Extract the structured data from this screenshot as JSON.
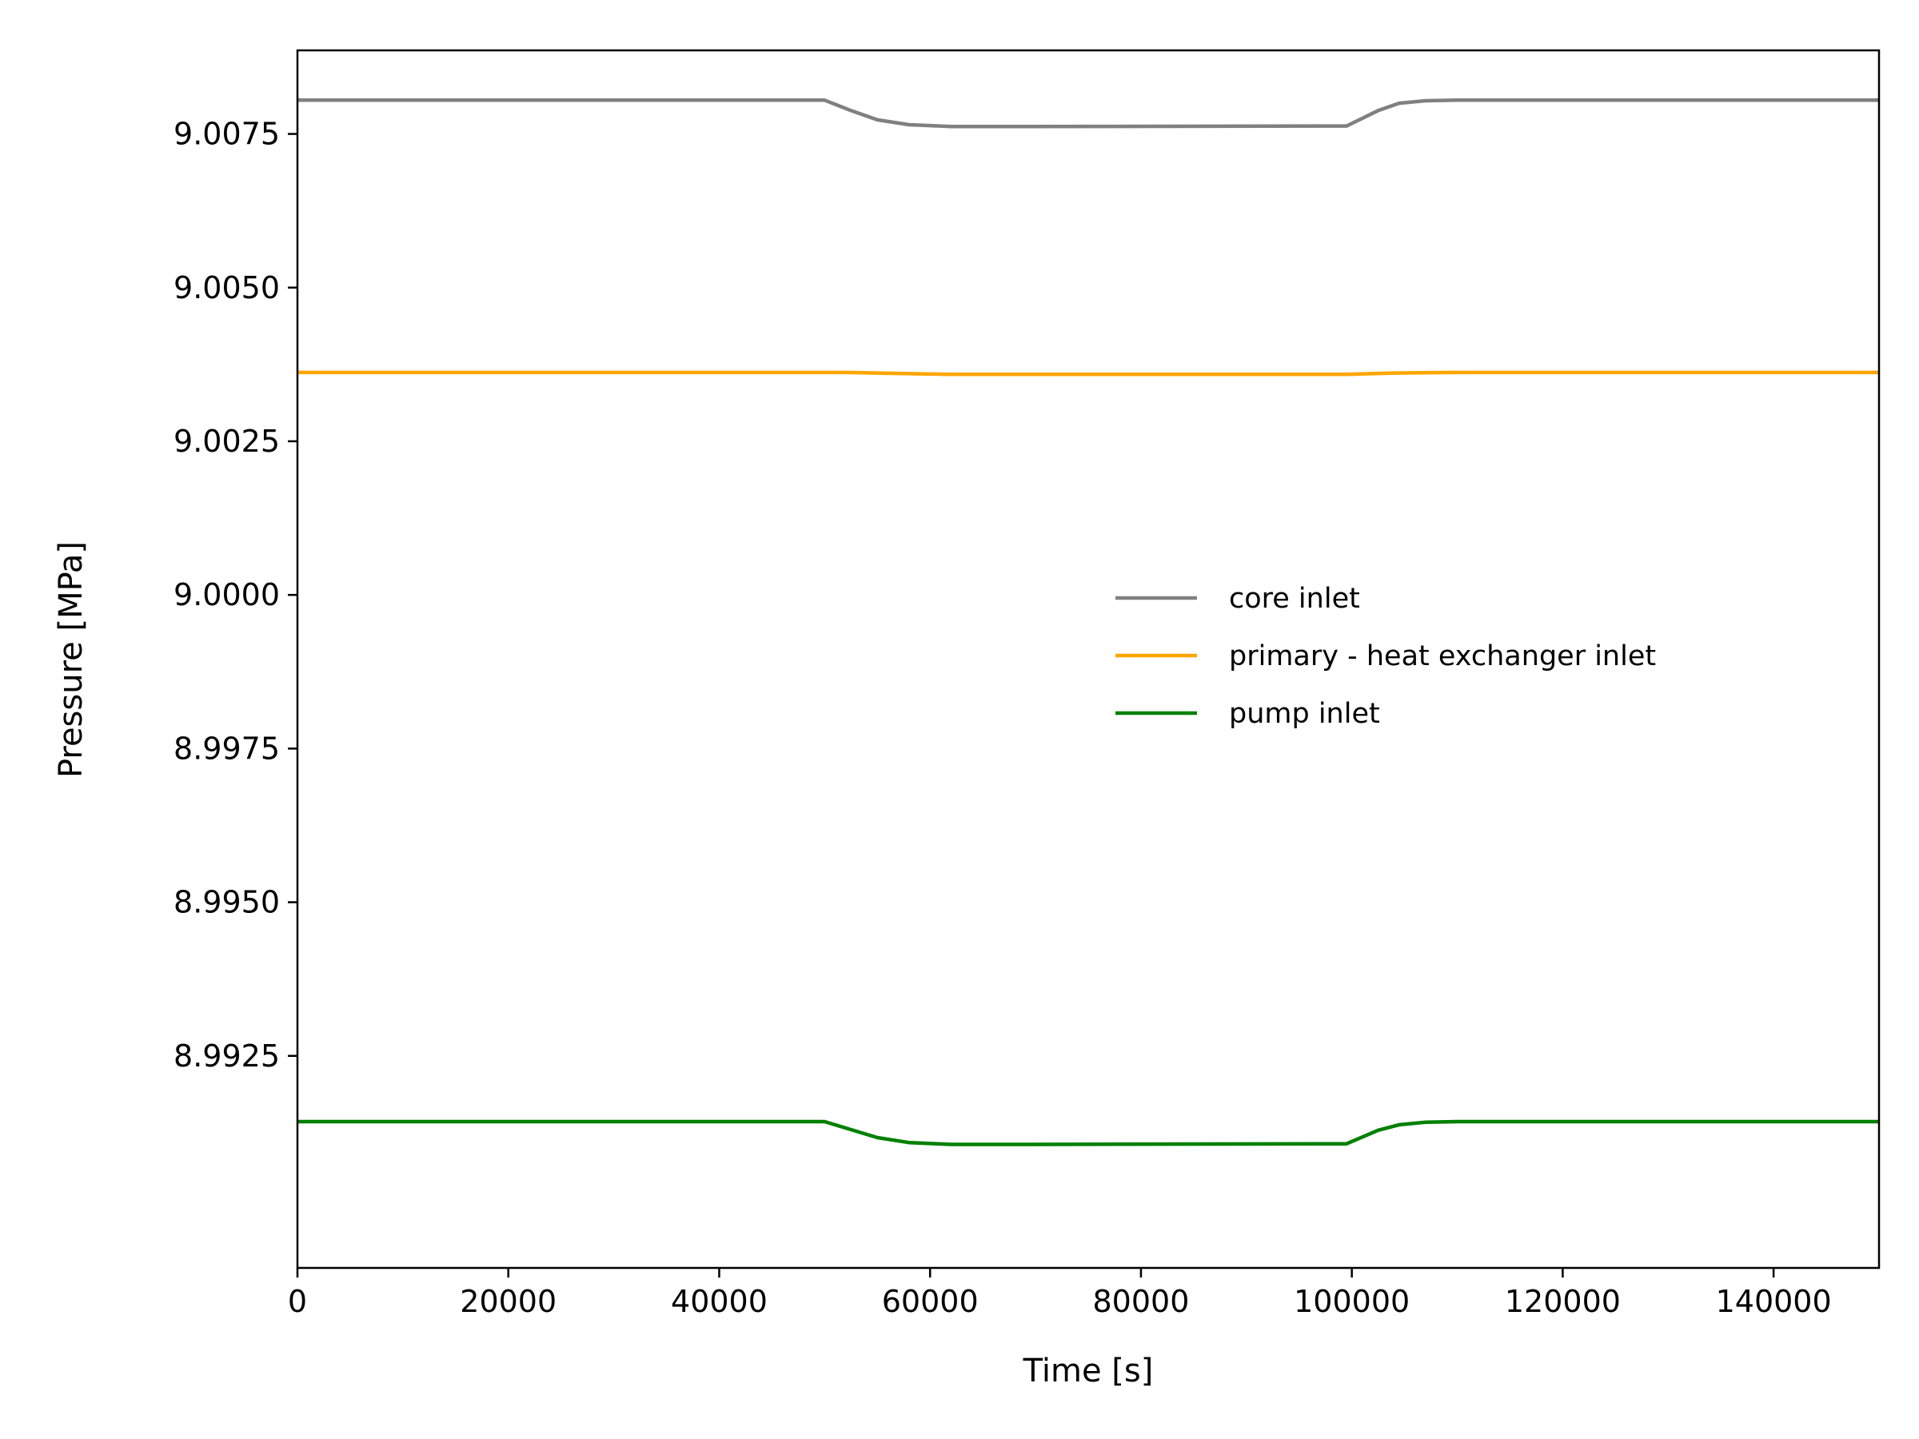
{
  "chart_data": {
    "type": "line",
    "title": "",
    "xlabel": "Time [s]",
    "ylabel": "Pressure [MPa]",
    "xlim": [
      0,
      150000
    ],
    "ylim": [
      8.98905,
      9.00886
    ],
    "x_ticks": [
      0,
      20000,
      40000,
      60000,
      80000,
      100000,
      120000,
      140000
    ],
    "x_tick_labels": [
      "0",
      "20000",
      "40000",
      "60000",
      "80000",
      "100000",
      "120000",
      "140000"
    ],
    "y_ticks": [
      8.9925,
      8.995,
      8.9975,
      9.0,
      9.0025,
      9.005,
      9.0075
    ],
    "y_tick_labels": [
      "8.9925",
      "8.9950",
      "8.9975",
      "9.0000",
      "9.0025",
      "9.0050",
      "9.0075"
    ],
    "grid": false,
    "legend_position": "center-right",
    "series": [
      {
        "name": "core inlet",
        "color": "#808080",
        "x": [
          0,
          50000,
          52500,
          55000,
          58000,
          62000,
          70000,
          99500,
          102500,
          104500,
          107000,
          110000,
          120000,
          150000
        ],
        "y": [
          9.00805,
          9.00805,
          9.00788,
          9.00773,
          9.00765,
          9.00762,
          9.00762,
          9.00763,
          9.00788,
          9.008,
          9.00804,
          9.00805,
          9.00805,
          9.00805
        ]
      },
      {
        "name": "primary - heat exchanger inlet",
        "color": "#FFA500",
        "x": [
          0,
          52000,
          58000,
          62000,
          99500,
          104000,
          110000,
          150000
        ],
        "y": [
          9.00362,
          9.00362,
          9.0036,
          9.00359,
          9.00359,
          9.00361,
          9.00362,
          9.00362
        ]
      },
      {
        "name": "pump inlet",
        "color": "#008000",
        "x": [
          0,
          50000,
          52500,
          55000,
          58000,
          62000,
          70000,
          99500,
          102500,
          104500,
          107000,
          110000,
          120000,
          150000
        ],
        "y": [
          8.99143,
          8.99143,
          8.9913,
          8.99117,
          8.99109,
          8.99106,
          8.99106,
          8.99107,
          8.99129,
          8.99138,
          8.99142,
          8.99143,
          8.99143,
          8.99143
        ]
      }
    ]
  }
}
